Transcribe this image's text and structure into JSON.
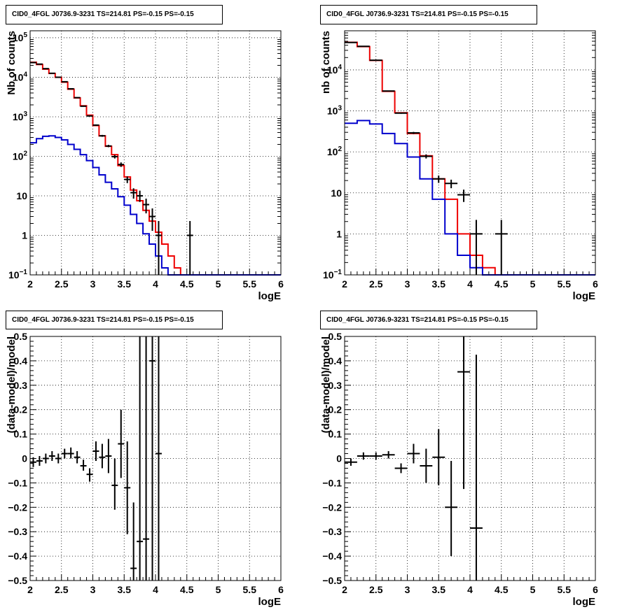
{
  "colors": {
    "data": "#000000",
    "total_model": "#ee0000",
    "source_model": "#0000cc",
    "grid": "#000000"
  },
  "chart_data": [
    {
      "id": "tl",
      "type": "histogram",
      "title": "CID0_4FGL J0736.9-3231 TS=214.81 PS=-0.15 PS=-0.15",
      "xlabel": "logE",
      "ylabel": "Nb of counts",
      "yscale": "log",
      "xlim": [
        2,
        6
      ],
      "ylim": [
        0.1,
        150000
      ],
      "grid": true,
      "xticks": [
        "2",
        "2.5",
        "3",
        "3.5",
        "4",
        "4.5",
        "5",
        "5.5",
        "6"
      ],
      "yticks": [
        {
          "v": 0.1,
          "label": "10",
          "exp": "−1"
        },
        {
          "v": 1,
          "label": "1",
          "exp": ""
        },
        {
          "v": 10,
          "label": "10",
          "exp": ""
        },
        {
          "v": 100,
          "label": "10",
          "exp": "2"
        },
        {
          "v": 1000,
          "label": "10",
          "exp": "3"
        },
        {
          "v": 10000,
          "label": "10",
          "exp": "4"
        },
        {
          "v": 100000,
          "label": "10",
          "exp": "5"
        }
      ],
      "bin_edges": [
        2,
        2.1,
        2.2,
        2.3,
        2.4,
        2.5,
        2.6,
        2.7,
        2.8,
        2.9,
        3,
        3.1,
        3.2,
        3.3,
        3.4,
        3.5,
        3.6,
        3.7,
        3.8,
        3.9,
        4,
        4.1,
        4.2,
        4.3,
        4.4,
        4.5,
        4.6,
        4.7,
        4.8,
        4.9,
        5,
        5.1,
        5.2,
        5.3,
        5.4,
        5.5,
        5.6,
        5.7,
        5.8,
        5.9,
        6
      ],
      "series": [
        {
          "role": "total",
          "values": [
            24000,
            21000,
            16000,
            12500,
            10000,
            7500,
            5000,
            3000,
            1900,
            1100,
            600,
            330,
            180,
            110,
            58,
            30,
            14,
            7.5,
            4.3,
            2.3,
            1.2,
            0.6,
            0.3,
            0.15,
            0.1,
            0.1,
            0.1,
            0.1,
            0.1,
            0.1,
            0.1,
            0.1,
            0.1,
            0.1,
            0.1,
            0.1,
            0.1,
            0.1,
            0.1,
            0.1
          ]
        },
        {
          "role": "source",
          "values": [
            220,
            280,
            320,
            330,
            300,
            260,
            200,
            150,
            110,
            78,
            52,
            34,
            22,
            15,
            9.5,
            5.8,
            3.4,
            2.0,
            1.1,
            0.6,
            0.3,
            0.15,
            0.1,
            0.1,
            0.1,
            0.1,
            0.1,
            0.1,
            0.1,
            0.1,
            0.1,
            0.1,
            0.1,
            0.1,
            0.1,
            0.1,
            0.1,
            0.1,
            0.1,
            0.1
          ]
        }
      ],
      "points": [
        {
          "x": 2.05,
          "y": 23500,
          "lo": 23200,
          "hi": 23800
        },
        {
          "x": 2.15,
          "y": 21500,
          "lo": 21200,
          "hi": 21800
        },
        {
          "x": 2.25,
          "y": 16500,
          "lo": 16200,
          "hi": 16800
        },
        {
          "x": 2.35,
          "y": 12600,
          "lo": 12400,
          "hi": 12800
        },
        {
          "x": 2.45,
          "y": 10000,
          "lo": 9800,
          "hi": 10200
        },
        {
          "x": 2.55,
          "y": 7700,
          "lo": 7500,
          "hi": 7900
        },
        {
          "x": 2.65,
          "y": 5100,
          "lo": 5000,
          "hi": 5200
        },
        {
          "x": 2.75,
          "y": 3050,
          "lo": 2990,
          "hi": 3110
        },
        {
          "x": 2.85,
          "y": 1850,
          "lo": 1800,
          "hi": 1900
        },
        {
          "x": 2.95,
          "y": 1050,
          "lo": 1020,
          "hi": 1080
        },
        {
          "x": 3.05,
          "y": 615,
          "lo": 590,
          "hi": 640
        },
        {
          "x": 3.15,
          "y": 330,
          "lo": 312,
          "hi": 348
        },
        {
          "x": 3.25,
          "y": 182,
          "lo": 170,
          "hi": 195
        },
        {
          "x": 3.35,
          "y": 98,
          "lo": 88,
          "hi": 108
        },
        {
          "x": 3.45,
          "y": 62,
          "lo": 54,
          "hi": 70
        },
        {
          "x": 3.55,
          "y": 26,
          "lo": 21,
          "hi": 31
        },
        {
          "x": 3.65,
          "y": 12,
          "lo": 8.5,
          "hi": 15.5
        },
        {
          "x": 3.75,
          "y": 10,
          "lo": 7,
          "hi": 13.5
        },
        {
          "x": 3.85,
          "y": 6,
          "lo": 3.6,
          "hi": 8.5
        },
        {
          "x": 3.95,
          "y": 3,
          "lo": 1.3,
          "hi": 4.8
        },
        {
          "x": 4.05,
          "y": 1,
          "lo": 0.1,
          "hi": 2.3
        },
        {
          "x": 4.55,
          "y": 1,
          "lo": 0.1,
          "hi": 2.3
        }
      ]
    },
    {
      "id": "tr",
      "type": "histogram",
      "title": "CID0_4FGL J0736.9-3231 TS=214.81 PS=-0.15 PS=-0.15",
      "xlabel": "logE",
      "ylabel": "nb of counts",
      "yscale": "log",
      "xlim": [
        2,
        6
      ],
      "ylim": [
        0.1,
        90000
      ],
      "grid": true,
      "xticks": [
        "2",
        "2.5",
        "3",
        "3.5",
        "4",
        "4.5",
        "5",
        "5.5",
        "6"
      ],
      "yticks": [
        {
          "v": 0.1,
          "label": "10",
          "exp": "−1"
        },
        {
          "v": 1,
          "label": "1",
          "exp": ""
        },
        {
          "v": 10,
          "label": "10",
          "exp": ""
        },
        {
          "v": 100,
          "label": "10",
          "exp": "2"
        },
        {
          "v": 1000,
          "label": "10",
          "exp": "3"
        },
        {
          "v": 10000,
          "label": "10",
          "exp": "4"
        }
      ],
      "bin_edges": [
        2,
        2.2,
        2.4,
        2.6,
        2.8,
        3,
        3.2,
        3.4,
        3.6,
        3.8,
        4,
        4.2,
        4.4,
        4.6,
        4.8,
        5,
        5.2,
        5.4,
        5.6,
        5.8,
        6
      ],
      "series": [
        {
          "role": "total",
          "values": [
            47000,
            37000,
            17000,
            3000,
            900,
            280,
            80,
            22,
            7,
            1,
            0.3,
            0.15,
            0.1,
            0.1,
            0.1,
            0.1,
            0.1,
            0.1,
            0.1,
            0.1
          ]
        },
        {
          "role": "source",
          "values": [
            500,
            580,
            480,
            280,
            160,
            75,
            22,
            7,
            1,
            0.3,
            0.15,
            0.1,
            0.1,
            0.1,
            0.1,
            0.1,
            0.1,
            0.1,
            0.1,
            0.1
          ]
        }
      ],
      "points": [
        {
          "x": 2.1,
          "y": 46500,
          "lo": 46200,
          "hi": 46800
        },
        {
          "x": 2.3,
          "y": 37500,
          "lo": 37200,
          "hi": 37800
        },
        {
          "x": 2.5,
          "y": 17200,
          "lo": 17000,
          "hi": 17400
        },
        {
          "x": 2.7,
          "y": 3050,
          "lo": 2990,
          "hi": 3110
        },
        {
          "x": 2.9,
          "y": 880,
          "lo": 850,
          "hi": 910
        },
        {
          "x": 3.1,
          "y": 290,
          "lo": 273,
          "hi": 307
        },
        {
          "x": 3.3,
          "y": 78,
          "lo": 69,
          "hi": 87
        },
        {
          "x": 3.5,
          "y": 22,
          "lo": 17.5,
          "hi": 26.5
        },
        {
          "x": 3.7,
          "y": 17,
          "lo": 13,
          "hi": 21
        },
        {
          "x": 3.9,
          "y": 9,
          "lo": 6,
          "hi": 12
        },
        {
          "x": 4.1,
          "y": 1,
          "lo": 0.1,
          "hi": 2.2
        },
        {
          "x": 4.5,
          "y": 1,
          "lo": 0.1,
          "hi": 2.2
        }
      ]
    },
    {
      "id": "bl",
      "type": "scatter",
      "title": "CID0_4FGL J0736.9-3231 TS=214.81 PS=-0.15 PS=-0.15",
      "xlabel": "logE",
      "ylabel": "(data-model)/model",
      "yscale": "linear",
      "xlim": [
        2,
        6
      ],
      "ylim": [
        -0.5,
        0.5
      ],
      "grid": true,
      "xticks": [
        "2",
        "2.5",
        "3",
        "3.5",
        "4",
        "4.5",
        "5",
        "5.5",
        "6"
      ],
      "yticks": [
        {
          "v": -0.5,
          "label": "−0.5"
        },
        {
          "v": -0.4,
          "label": "−0.4"
        },
        {
          "v": -0.3,
          "label": "−0.3"
        },
        {
          "v": -0.2,
          "label": "−0.2"
        },
        {
          "v": -0.1,
          "label": "−0.1"
        },
        {
          "v": 0,
          "label": "0"
        },
        {
          "v": 0.1,
          "label": "0.1"
        },
        {
          "v": 0.2,
          "label": "0.2"
        },
        {
          "v": 0.3,
          "label": "0.3"
        },
        {
          "v": 0.4,
          "label": "0.4"
        },
        {
          "v": 0.5,
          "label": "0.5"
        }
      ],
      "xerr": 0.05,
      "points": [
        {
          "x": 2.05,
          "y": -0.015,
          "lo": -0.035,
          "hi": 0.005
        },
        {
          "x": 2.15,
          "y": -0.01,
          "lo": -0.03,
          "hi": 0.01
        },
        {
          "x": 2.25,
          "y": 0.0,
          "lo": -0.02,
          "hi": 0.02
        },
        {
          "x": 2.35,
          "y": 0.01,
          "lo": -0.01,
          "hi": 0.03
        },
        {
          "x": 2.45,
          "y": 0.0,
          "lo": -0.02,
          "hi": 0.02
        },
        {
          "x": 2.55,
          "y": 0.02,
          "lo": 0.0,
          "hi": 0.04
        },
        {
          "x": 2.65,
          "y": 0.02,
          "lo": 0.0,
          "hi": 0.045
        },
        {
          "x": 2.75,
          "y": 0.005,
          "lo": -0.02,
          "hi": 0.03
        },
        {
          "x": 2.85,
          "y": -0.03,
          "lo": -0.05,
          "hi": -0.005
        },
        {
          "x": 2.95,
          "y": -0.065,
          "lo": -0.095,
          "hi": -0.04
        },
        {
          "x": 3.05,
          "y": 0.03,
          "lo": -0.01,
          "hi": 0.07
        },
        {
          "x": 3.15,
          "y": 0.005,
          "lo": -0.04,
          "hi": 0.06
        },
        {
          "x": 3.25,
          "y": 0.01,
          "lo": -0.06,
          "hi": 0.08
        },
        {
          "x": 3.35,
          "y": -0.11,
          "lo": -0.21,
          "hi": 0.0
        },
        {
          "x": 3.45,
          "y": 0.06,
          "lo": -0.08,
          "hi": 0.2
        },
        {
          "x": 3.55,
          "y": -0.12,
          "lo": -0.31,
          "hi": 0.07
        },
        {
          "x": 3.65,
          "y": -0.45,
          "lo": -0.5,
          "hi": -0.18
        },
        {
          "x": 3.75,
          "y": -0.34,
          "lo": -0.8,
          "hi": 0.5
        },
        {
          "x": 3.85,
          "y": -0.33,
          "lo": -0.8,
          "hi": 0.5
        },
        {
          "x": 3.95,
          "y": 0.4,
          "lo": -0.8,
          "hi": 0.5
        },
        {
          "x": 4.05,
          "y": 0.02,
          "lo": -0.8,
          "hi": 0.5
        }
      ]
    },
    {
      "id": "br",
      "type": "scatter",
      "title": "CID0_4FGL J0736.9-3231 TS=214.81 PS=-0.15 PS=-0.15",
      "xlabel": "logE",
      "ylabel": "(data-model)/model",
      "yscale": "linear",
      "xlim": [
        2,
        6
      ],
      "ylim": [
        -0.5,
        0.5
      ],
      "grid": true,
      "xticks": [
        "2",
        "2.5",
        "3",
        "3.5",
        "4",
        "4.5",
        "5",
        "5.5",
        "6"
      ],
      "yticks": [
        {
          "v": -0.5,
          "label": "−0.5"
        },
        {
          "v": -0.4,
          "label": "−0.4"
        },
        {
          "v": -0.3,
          "label": "−0.3"
        },
        {
          "v": -0.2,
          "label": "−0.2"
        },
        {
          "v": -0.1,
          "label": "−0.1"
        },
        {
          "v": 0,
          "label": "0"
        },
        {
          "v": 0.1,
          "label": "0.1"
        },
        {
          "v": 0.2,
          "label": "0.2"
        },
        {
          "v": 0.3,
          "label": "0.3"
        },
        {
          "v": 0.4,
          "label": "0.4"
        },
        {
          "v": 0.5,
          "label": "0.5"
        }
      ],
      "xerr": 0.1,
      "points": [
        {
          "x": 2.1,
          "y": -0.015,
          "lo": -0.03,
          "hi": 0.0
        },
        {
          "x": 2.3,
          "y": 0.01,
          "lo": -0.005,
          "hi": 0.025
        },
        {
          "x": 2.5,
          "y": 0.01,
          "lo": -0.005,
          "hi": 0.025
        },
        {
          "x": 2.7,
          "y": 0.015,
          "lo": 0.0,
          "hi": 0.03
        },
        {
          "x": 2.9,
          "y": -0.04,
          "lo": -0.06,
          "hi": -0.02
        },
        {
          "x": 3.1,
          "y": 0.02,
          "lo": -0.02,
          "hi": 0.06
        },
        {
          "x": 3.3,
          "y": -0.03,
          "lo": -0.1,
          "hi": 0.04
        },
        {
          "x": 3.5,
          "y": 0.005,
          "lo": -0.11,
          "hi": 0.12
        },
        {
          "x": 3.7,
          "y": -0.2,
          "lo": -0.4,
          "hi": -0.01
        },
        {
          "x": 3.9,
          "y": 0.355,
          "lo": -0.125,
          "hi": 0.5
        },
        {
          "x": 4.1,
          "y": -0.285,
          "lo": -0.8,
          "hi": 0.425
        }
      ]
    }
  ]
}
